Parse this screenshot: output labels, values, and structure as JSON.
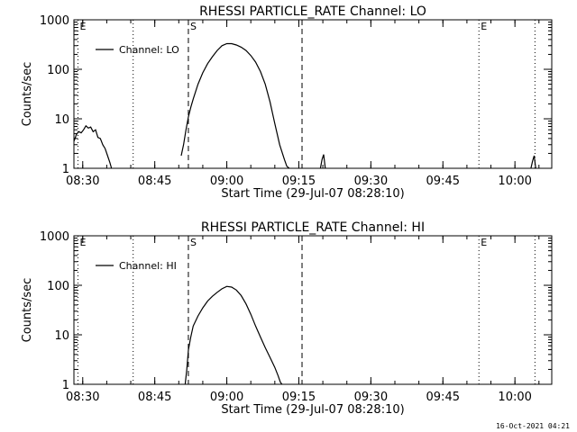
{
  "chart_data": [
    {
      "type": "line",
      "title": "RHESSI PARTICLE_RATE Channel: LO",
      "xlabel": "Start Time (29-Jul-07 08:28:10)",
      "ylabel": "Counts/sec",
      "y_scale": "log",
      "xlim": [
        "08:28:10",
        "10:07:40"
      ],
      "ylim": [
        1,
        1000
      ],
      "x_ticks": [
        "08:30",
        "08:45",
        "09:00",
        "09:15",
        "09:30",
        "09:45",
        "10:00"
      ],
      "y_ticks": [
        "1",
        "10",
        "100",
        "1000"
      ],
      "legend": {
        "position": "top-left",
        "entries": [
          "Channel: LO"
        ]
      },
      "markers": [
        {
          "time": "08:29:00",
          "style": "dotted",
          "label": "E"
        },
        {
          "time": "08:40:30",
          "style": "dotted",
          "label": ""
        },
        {
          "time": "08:52:00",
          "style": "dashed",
          "label": "S"
        },
        {
          "time": "09:15:40",
          "style": "dashed",
          "label": ""
        },
        {
          "time": "09:52:30",
          "style": "dotted",
          "label": "E"
        },
        {
          "time": "10:04:10",
          "style": "dotted",
          "label": ""
        }
      ],
      "series": [
        {
          "name": "Channel: LO",
          "segments": [
            {
              "x": [
                "08:28:10",
                "08:28:40",
                "08:29:10",
                "08:29:40",
                "08:30:10",
                "08:30:40",
                "08:31:10",
                "08:31:40",
                "08:32:10",
                "08:32:40",
                "08:33:10",
                "08:33:40",
                "08:34:10",
                "08:34:40",
                "08:35:10",
                "08:35:40",
                "08:36:00"
              ],
              "y": [
                3.5,
                4.8,
                5.5,
                5.2,
                6.0,
                7.2,
                6.5,
                6.8,
                5.5,
                6.0,
                4.2,
                4.0,
                3.0,
                2.5,
                1.8,
                1.3,
                1.0
              ]
            },
            {
              "x": [
                "08:50:30",
                "08:51:00",
                "08:51:30",
                "08:52:00",
                "08:52:30",
                "08:53:00",
                "08:54:00",
                "08:55:00",
                "08:56:00",
                "08:57:00",
                "08:58:00",
                "08:59:00",
                "09:00:00",
                "09:01:00",
                "09:02:00",
                "09:03:00",
                "09:04:00",
                "09:05:00",
                "09:06:00",
                "09:07:00",
                "09:08:00",
                "09:09:00",
                "09:10:00",
                "09:11:00",
                "09:12:00",
                "09:12:30",
                "09:13:00"
              ],
              "y": [
                1.8,
                3.0,
                6.0,
                11,
                17,
                25,
                50,
                85,
                130,
                180,
                240,
                300,
                330,
                330,
                310,
                280,
                240,
                190,
                140,
                90,
                50,
                22,
                8,
                3,
                1.5,
                1.1,
                1.0
              ]
            },
            {
              "x": [
                "09:19:30",
                "09:19:50",
                "09:20:10",
                "09:20:30"
              ],
              "y": [
                1.0,
                1.5,
                1.9,
                1.0
              ]
            },
            {
              "x": [
                "10:03:20",
                "10:03:40",
                "10:04:00",
                "10:04:20"
              ],
              "y": [
                1.0,
                1.4,
                1.8,
                1.0
              ]
            }
          ]
        }
      ]
    },
    {
      "type": "line",
      "title": "RHESSI PARTICLE_RATE Channel: HI",
      "xlabel": "Start Time (29-Jul-07 08:28:10)",
      "ylabel": "Counts/sec",
      "y_scale": "log",
      "xlim": [
        "08:28:10",
        "10:07:40"
      ],
      "ylim": [
        1,
        1000
      ],
      "x_ticks": [
        "08:30",
        "08:45",
        "09:00",
        "09:15",
        "09:30",
        "09:45",
        "10:00"
      ],
      "y_ticks": [
        "1",
        "10",
        "100",
        "1000"
      ],
      "legend": {
        "position": "top-left",
        "entries": [
          "Channel: HI"
        ]
      },
      "markers": [
        {
          "time": "08:29:00",
          "style": "dotted",
          "label": "E"
        },
        {
          "time": "08:40:30",
          "style": "dotted",
          "label": ""
        },
        {
          "time": "08:52:00",
          "style": "dashed",
          "label": "S"
        },
        {
          "time": "09:15:40",
          "style": "dashed",
          "label": ""
        },
        {
          "time": "09:52:30",
          "style": "dotted",
          "label": "E"
        },
        {
          "time": "10:04:10",
          "style": "dotted",
          "label": ""
        }
      ],
      "series": [
        {
          "name": "Channel: HI",
          "segments": [
            {
              "x": [
                "08:51:20",
                "08:51:40",
                "08:52:00",
                "08:52:30",
                "08:53:00",
                "08:54:00",
                "08:55:00",
                "08:56:00",
                "08:57:00",
                "08:58:00",
                "08:59:00",
                "09:00:00",
                "09:01:00",
                "09:02:00",
                "09:03:00",
                "09:04:00",
                "09:05:00",
                "09:06:00",
                "09:07:00",
                "09:08:00",
                "09:09:00",
                "09:10:00",
                "09:10:40",
                "09:11:10",
                "09:11:30"
              ],
              "y": [
                1.0,
                2.0,
                5.0,
                9.0,
                15,
                24,
                35,
                48,
                60,
                72,
                85,
                95,
                92,
                80,
                62,
                42,
                26,
                15,
                9,
                5.5,
                3.5,
                2.2,
                1.5,
                1.1,
                1.0
              ]
            }
          ]
        }
      ]
    }
  ],
  "footer": {
    "timestamp": "16-Oct-2021 04:21"
  }
}
